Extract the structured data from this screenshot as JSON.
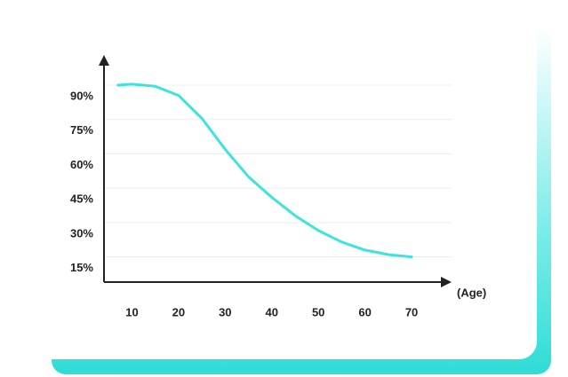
{
  "chart_data": {
    "type": "line",
    "x_label": "(Age)",
    "x": [
      7,
      10,
      15,
      20,
      25,
      30,
      35,
      40,
      45,
      50,
      55,
      60,
      65,
      70
    ],
    "series": [
      {
        "color": "#3fe3dd",
        "values": [
          90,
          90.4,
          89.5,
          85.5,
          75.5,
          62,
          50,
          41,
          33,
          26.5,
          21.5,
          18,
          16,
          15
        ]
      }
    ],
    "xlim": [
      4,
      78
    ],
    "ylim": [
      4,
      102
    ],
    "xticks": [
      10,
      20,
      30,
      40,
      50,
      60,
      70
    ],
    "yticks": [
      {
        "value": 15,
        "label": "15%"
      },
      {
        "value": 30,
        "label": "30%"
      },
      {
        "value": 45,
        "label": "45%"
      },
      {
        "value": 60,
        "label": "60%"
      },
      {
        "value": 75,
        "label": "75%"
      },
      {
        "value": 90,
        "label": "90%"
      }
    ],
    "grid": true
  }
}
